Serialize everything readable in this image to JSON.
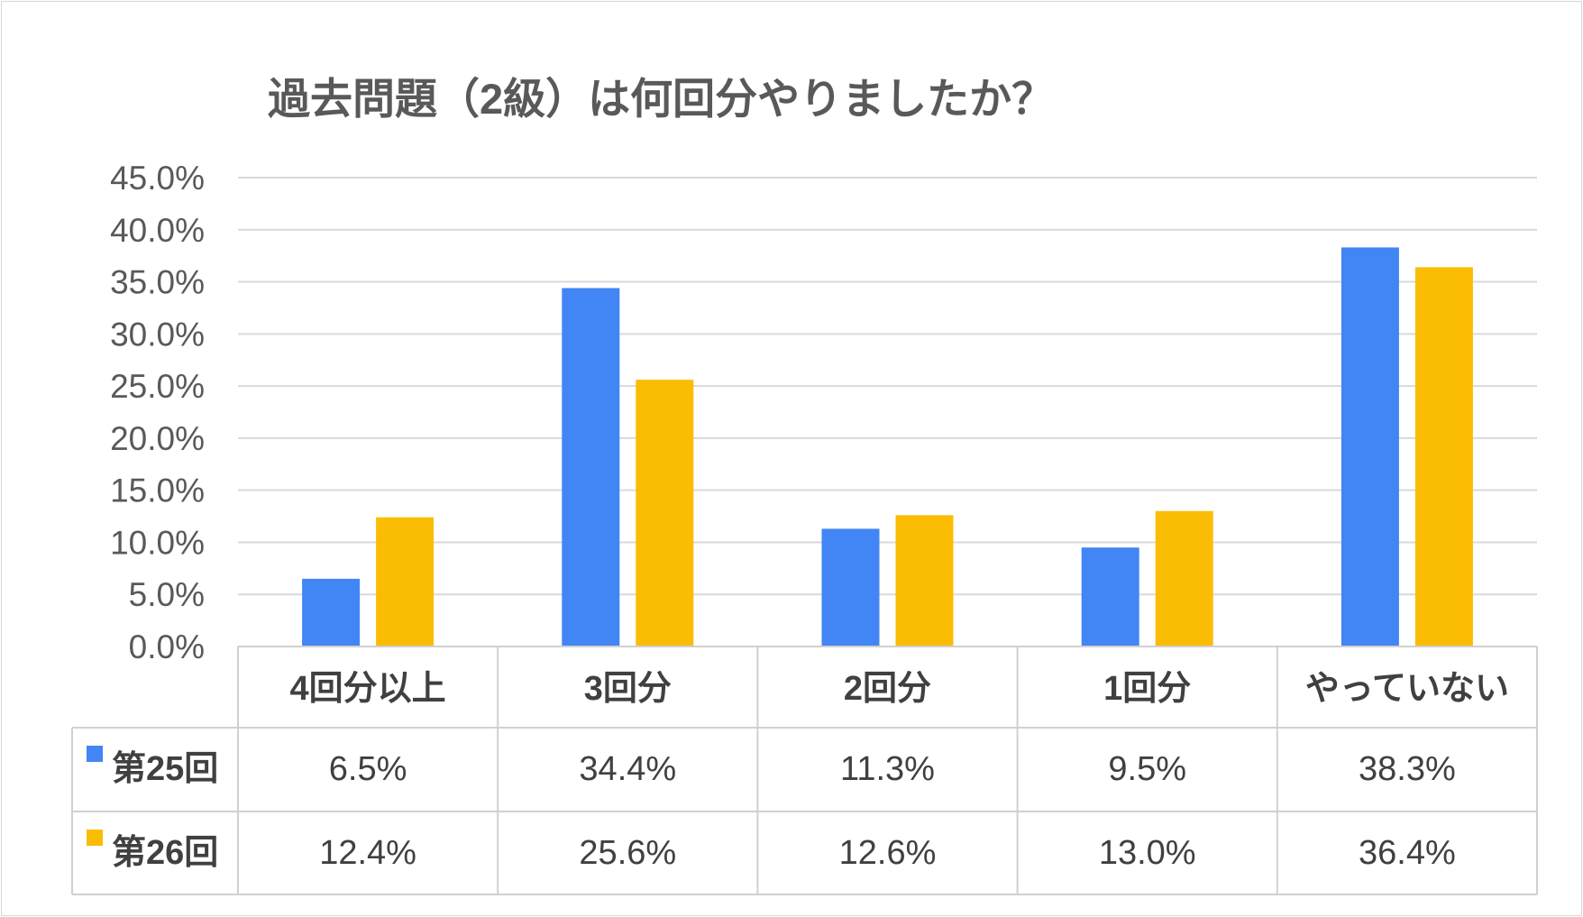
{
  "chart_data": {
    "type": "bar",
    "title": "過去問題（2級）は何回分やりましたか？",
    "categories": [
      "4回分以上",
      "3回分",
      "2回分",
      "1回分",
      "やっていない"
    ],
    "series": [
      {
        "name": "第25回",
        "color": "#4285f4",
        "values": [
          6.5,
          34.4,
          11.3,
          9.5,
          38.3
        ],
        "labels": [
          "6.5%",
          "34.4%",
          "11.3%",
          "9.5%",
          "38.3%"
        ]
      },
      {
        "name": "第26回",
        "color": "#fbbc04",
        "values": [
          12.4,
          25.6,
          12.6,
          13.0,
          36.4
        ],
        "labels": [
          "12.4%",
          "25.6%",
          "12.6%",
          "13.0%",
          "36.4%"
        ]
      }
    ],
    "ylim": [
      0,
      45
    ],
    "yticks": [
      "0.0%",
      "5.0%",
      "10.0%",
      "15.0%",
      "20.0%",
      "25.0%",
      "30.0%",
      "35.0%",
      "40.0%",
      "45.0%"
    ],
    "grid": true,
    "legend": "data-table"
  }
}
